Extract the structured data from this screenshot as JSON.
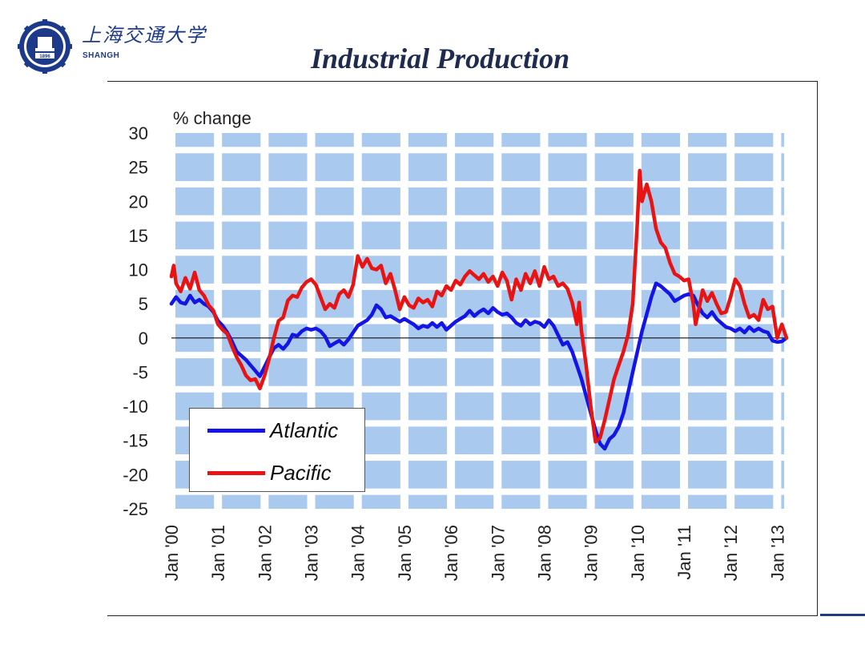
{
  "header": {
    "university_cn": "上海交通大学",
    "university_en": "SHANGH",
    "logo_year": "1896",
    "logo_icon": "university-seal-icon"
  },
  "title": "Industrial Production",
  "colors": {
    "atlantic": "#1414e6",
    "pacific": "#e81414",
    "grid_block": "#a9c9ee",
    "accent": "#1f3c88"
  },
  "chart_data": {
    "type": "line",
    "title": "Industrial Production",
    "ylabel": "% change",
    "xlabel": "",
    "ylim": [
      -25,
      30
    ],
    "yticks": [
      30,
      25,
      20,
      15,
      10,
      5,
      0,
      -5,
      -10,
      -15,
      -20,
      -25
    ],
    "xlim": [
      2000,
      2013.2
    ],
    "xticks": [
      {
        "label": "Jan '00",
        "x": 2000
      },
      {
        "label": "Jan '01",
        "x": 2001
      },
      {
        "label": "Jan '02",
        "x": 2002
      },
      {
        "label": "Jan '03",
        "x": 2003
      },
      {
        "label": "Jan '04",
        "x": 2004
      },
      {
        "label": "Jan '05",
        "x": 2005
      },
      {
        "label": "Jan '06",
        "x": 2006
      },
      {
        "label": "Jan '07",
        "x": 2007
      },
      {
        "label": "Jan '08",
        "x": 2008
      },
      {
        "label": "Jan '09",
        "x": 2009
      },
      {
        "label": "Jan '10",
        "x": 2010
      },
      {
        "label": "Jan '11",
        "x": 2011
      },
      {
        "label": "Jan '12",
        "x": 2012
      },
      {
        "label": "Jan '13",
        "x": 2013
      }
    ],
    "legend_position": "bottom-left",
    "grid": true,
    "series": [
      {
        "name": "Atlantic",
        "color": "#1414e6",
        "points": [
          [
            2000.0,
            5.0
          ],
          [
            2000.1,
            6.0
          ],
          [
            2000.2,
            5.2
          ],
          [
            2000.3,
            5.0
          ],
          [
            2000.4,
            6.2
          ],
          [
            2000.5,
            5.2
          ],
          [
            2000.6,
            5.6
          ],
          [
            2000.7,
            5.0
          ],
          [
            2000.8,
            4.6
          ],
          [
            2000.9,
            3.8
          ],
          [
            2001.0,
            2.5
          ],
          [
            2001.1,
            1.8
          ],
          [
            2001.2,
            0.8
          ],
          [
            2001.3,
            -0.5
          ],
          [
            2001.4,
            -2.0
          ],
          [
            2001.5,
            -2.6
          ],
          [
            2001.6,
            -3.2
          ],
          [
            2001.7,
            -4.0
          ],
          [
            2001.8,
            -4.8
          ],
          [
            2001.9,
            -5.6
          ],
          [
            2002.0,
            -4.2
          ],
          [
            2002.1,
            -2.8
          ],
          [
            2002.2,
            -1.5
          ],
          [
            2002.3,
            -1.0
          ],
          [
            2002.4,
            -1.6
          ],
          [
            2002.5,
            -0.8
          ],
          [
            2002.6,
            0.5
          ],
          [
            2002.7,
            0.3
          ],
          [
            2002.8,
            1.0
          ],
          [
            2002.9,
            1.4
          ],
          [
            2003.0,
            1.2
          ],
          [
            2003.1,
            1.4
          ],
          [
            2003.2,
            1.0
          ],
          [
            2003.3,
            0.2
          ],
          [
            2003.4,
            -1.2
          ],
          [
            2003.5,
            -0.8
          ],
          [
            2003.6,
            -0.4
          ],
          [
            2003.7,
            -1.0
          ],
          [
            2003.8,
            -0.2
          ],
          [
            2003.9,
            0.8
          ],
          [
            2004.0,
            1.8
          ],
          [
            2004.1,
            2.2
          ],
          [
            2004.2,
            2.6
          ],
          [
            2004.3,
            3.4
          ],
          [
            2004.4,
            4.8
          ],
          [
            2004.5,
            4.2
          ],
          [
            2004.6,
            3.0
          ],
          [
            2004.7,
            3.2
          ],
          [
            2004.8,
            2.8
          ],
          [
            2004.9,
            2.4
          ],
          [
            2005.0,
            2.8
          ],
          [
            2005.1,
            2.4
          ],
          [
            2005.2,
            2.0
          ],
          [
            2005.3,
            1.4
          ],
          [
            2005.4,
            1.8
          ],
          [
            2005.5,
            1.6
          ],
          [
            2005.6,
            2.2
          ],
          [
            2005.7,
            1.6
          ],
          [
            2005.8,
            2.2
          ],
          [
            2005.9,
            1.2
          ],
          [
            2006.0,
            1.8
          ],
          [
            2006.1,
            2.4
          ],
          [
            2006.2,
            2.8
          ],
          [
            2006.3,
            3.2
          ],
          [
            2006.4,
            4.0
          ],
          [
            2006.5,
            3.2
          ],
          [
            2006.6,
            3.8
          ],
          [
            2006.7,
            4.2
          ],
          [
            2006.8,
            3.6
          ],
          [
            2006.9,
            4.4
          ],
          [
            2007.0,
            3.8
          ],
          [
            2007.1,
            3.4
          ],
          [
            2007.2,
            3.6
          ],
          [
            2007.3,
            3.0
          ],
          [
            2007.4,
            2.2
          ],
          [
            2007.5,
            1.8
          ],
          [
            2007.6,
            2.6
          ],
          [
            2007.7,
            2.0
          ],
          [
            2007.8,
            2.4
          ],
          [
            2007.9,
            2.2
          ],
          [
            2008.0,
            1.6
          ],
          [
            2008.1,
            2.6
          ],
          [
            2008.2,
            1.8
          ],
          [
            2008.3,
            0.4
          ],
          [
            2008.4,
            -1.0
          ],
          [
            2008.5,
            -0.6
          ],
          [
            2008.6,
            -2.0
          ],
          [
            2008.7,
            -4.0
          ],
          [
            2008.8,
            -6.0
          ],
          [
            2008.9,
            -8.5
          ],
          [
            2009.0,
            -11.0
          ],
          [
            2009.1,
            -13.5
          ],
          [
            2009.2,
            -15.5
          ],
          [
            2009.3,
            -16.2
          ],
          [
            2009.4,
            -14.8
          ],
          [
            2009.5,
            -14.2
          ],
          [
            2009.6,
            -13.0
          ],
          [
            2009.7,
            -11.0
          ],
          [
            2009.8,
            -8.0
          ],
          [
            2009.9,
            -5.0
          ],
          [
            2010.0,
            -2.0
          ],
          [
            2010.1,
            1.0
          ],
          [
            2010.2,
            3.5
          ],
          [
            2010.3,
            6.0
          ],
          [
            2010.4,
            8.0
          ],
          [
            2010.5,
            7.6
          ],
          [
            2010.6,
            7.0
          ],
          [
            2010.7,
            6.4
          ],
          [
            2010.8,
            5.4
          ],
          [
            2010.9,
            5.8
          ],
          [
            2011.0,
            6.2
          ],
          [
            2011.1,
            6.4
          ],
          [
            2011.2,
            6.2
          ],
          [
            2011.3,
            4.8
          ],
          [
            2011.4,
            3.6
          ],
          [
            2011.5,
            3.0
          ],
          [
            2011.6,
            3.8
          ],
          [
            2011.7,
            2.8
          ],
          [
            2011.8,
            2.2
          ],
          [
            2011.9,
            1.6
          ],
          [
            2012.0,
            1.4
          ],
          [
            2012.1,
            1.0
          ],
          [
            2012.2,
            1.4
          ],
          [
            2012.3,
            0.8
          ],
          [
            2012.4,
            1.6
          ],
          [
            2012.5,
            1.0
          ],
          [
            2012.6,
            1.4
          ],
          [
            2012.7,
            1.0
          ],
          [
            2012.8,
            0.8
          ],
          [
            2012.9,
            -0.4
          ],
          [
            2013.0,
            -0.6
          ],
          [
            2013.1,
            -0.5
          ],
          [
            2013.2,
            0.0
          ]
        ]
      },
      {
        "name": "Pacific",
        "color": "#e81414",
        "points": [
          [
            2000.0,
            9.0
          ],
          [
            2000.05,
            10.6
          ],
          [
            2000.1,
            8.0
          ],
          [
            2000.2,
            6.8
          ],
          [
            2000.3,
            8.8
          ],
          [
            2000.4,
            7.2
          ],
          [
            2000.5,
            9.6
          ],
          [
            2000.6,
            7.0
          ],
          [
            2000.7,
            6.2
          ],
          [
            2000.8,
            4.8
          ],
          [
            2000.9,
            4.0
          ],
          [
            2001.0,
            2.0
          ],
          [
            2001.1,
            1.2
          ],
          [
            2001.2,
            0.6
          ],
          [
            2001.3,
            -1.2
          ],
          [
            2001.4,
            -2.8
          ],
          [
            2001.5,
            -4.0
          ],
          [
            2001.6,
            -5.5
          ],
          [
            2001.7,
            -6.2
          ],
          [
            2001.8,
            -6.0
          ],
          [
            2001.9,
            -7.4
          ],
          [
            2002.0,
            -5.5
          ],
          [
            2002.1,
            -3.0
          ],
          [
            2002.2,
            0.0
          ],
          [
            2002.3,
            2.5
          ],
          [
            2002.4,
            3.0
          ],
          [
            2002.5,
            5.5
          ],
          [
            2002.6,
            6.2
          ],
          [
            2002.7,
            6.0
          ],
          [
            2002.8,
            7.4
          ],
          [
            2002.9,
            8.2
          ],
          [
            2003.0,
            8.6
          ],
          [
            2003.1,
            7.8
          ],
          [
            2003.2,
            6.0
          ],
          [
            2003.3,
            4.2
          ],
          [
            2003.4,
            5.0
          ],
          [
            2003.5,
            4.4
          ],
          [
            2003.6,
            6.4
          ],
          [
            2003.7,
            7.0
          ],
          [
            2003.8,
            6.0
          ],
          [
            2003.9,
            7.8
          ],
          [
            2004.0,
            12.0
          ],
          [
            2004.1,
            10.4
          ],
          [
            2004.2,
            11.6
          ],
          [
            2004.3,
            10.2
          ],
          [
            2004.4,
            10.0
          ],
          [
            2004.5,
            10.6
          ],
          [
            2004.6,
            8.0
          ],
          [
            2004.7,
            9.4
          ],
          [
            2004.8,
            7.0
          ],
          [
            2004.9,
            4.2
          ],
          [
            2005.0,
            6.0
          ],
          [
            2005.1,
            4.8
          ],
          [
            2005.2,
            4.4
          ],
          [
            2005.3,
            5.8
          ],
          [
            2005.4,
            5.2
          ],
          [
            2005.5,
            5.6
          ],
          [
            2005.6,
            4.6
          ],
          [
            2005.7,
            6.8
          ],
          [
            2005.8,
            6.2
          ],
          [
            2005.9,
            7.6
          ],
          [
            2006.0,
            7.0
          ],
          [
            2006.1,
            8.4
          ],
          [
            2006.2,
            7.8
          ],
          [
            2006.3,
            9.0
          ],
          [
            2006.4,
            9.8
          ],
          [
            2006.5,
            9.2
          ],
          [
            2006.6,
            8.6
          ],
          [
            2006.7,
            9.4
          ],
          [
            2006.8,
            8.2
          ],
          [
            2006.9,
            9.0
          ],
          [
            2007.0,
            7.6
          ],
          [
            2007.1,
            9.6
          ],
          [
            2007.2,
            8.4
          ],
          [
            2007.3,
            5.6
          ],
          [
            2007.4,
            8.6
          ],
          [
            2007.5,
            7.0
          ],
          [
            2007.6,
            9.4
          ],
          [
            2007.7,
            8.0
          ],
          [
            2007.8,
            9.8
          ],
          [
            2007.9,
            7.6
          ],
          [
            2008.0,
            10.4
          ],
          [
            2008.1,
            8.6
          ],
          [
            2008.2,
            9.0
          ],
          [
            2008.3,
            7.6
          ],
          [
            2008.4,
            8.0
          ],
          [
            2008.5,
            7.2
          ],
          [
            2008.6,
            5.2
          ],
          [
            2008.7,
            2.0
          ],
          [
            2008.75,
            5.2
          ],
          [
            2008.8,
            1.0
          ],
          [
            2008.9,
            -4.0
          ],
          [
            2009.0,
            -10.0
          ],
          [
            2009.1,
            -15.2
          ],
          [
            2009.2,
            -14.6
          ],
          [
            2009.3,
            -12.0
          ],
          [
            2009.4,
            -9.0
          ],
          [
            2009.5,
            -6.0
          ],
          [
            2009.6,
            -4.0
          ],
          [
            2009.7,
            -2.0
          ],
          [
            2009.8,
            0.5
          ],
          [
            2009.9,
            5.0
          ],
          [
            2010.0,
            17.0
          ],
          [
            2010.05,
            24.5
          ],
          [
            2010.1,
            20.0
          ],
          [
            2010.2,
            22.5
          ],
          [
            2010.3,
            20.0
          ],
          [
            2010.4,
            16.0
          ],
          [
            2010.5,
            14.0
          ],
          [
            2010.6,
            13.2
          ],
          [
            2010.7,
            11.0
          ],
          [
            2010.8,
            9.4
          ],
          [
            2010.9,
            9.0
          ],
          [
            2011.0,
            8.4
          ],
          [
            2011.1,
            8.6
          ],
          [
            2011.2,
            5.0
          ],
          [
            2011.25,
            2.0
          ],
          [
            2011.3,
            3.6
          ],
          [
            2011.4,
            7.0
          ],
          [
            2011.5,
            5.4
          ],
          [
            2011.6,
            6.6
          ],
          [
            2011.7,
            5.0
          ],
          [
            2011.8,
            3.6
          ],
          [
            2011.9,
            3.8
          ],
          [
            2012.0,
            6.0
          ],
          [
            2012.1,
            8.6
          ],
          [
            2012.2,
            7.6
          ],
          [
            2012.3,
            5.0
          ],
          [
            2012.4,
            3.0
          ],
          [
            2012.5,
            3.4
          ],
          [
            2012.6,
            2.6
          ],
          [
            2012.7,
            5.6
          ],
          [
            2012.8,
            4.2
          ],
          [
            2012.9,
            4.6
          ],
          [
            2013.0,
            0.0
          ],
          [
            2013.1,
            2.0
          ],
          [
            2013.2,
            0.0
          ]
        ]
      }
    ]
  }
}
